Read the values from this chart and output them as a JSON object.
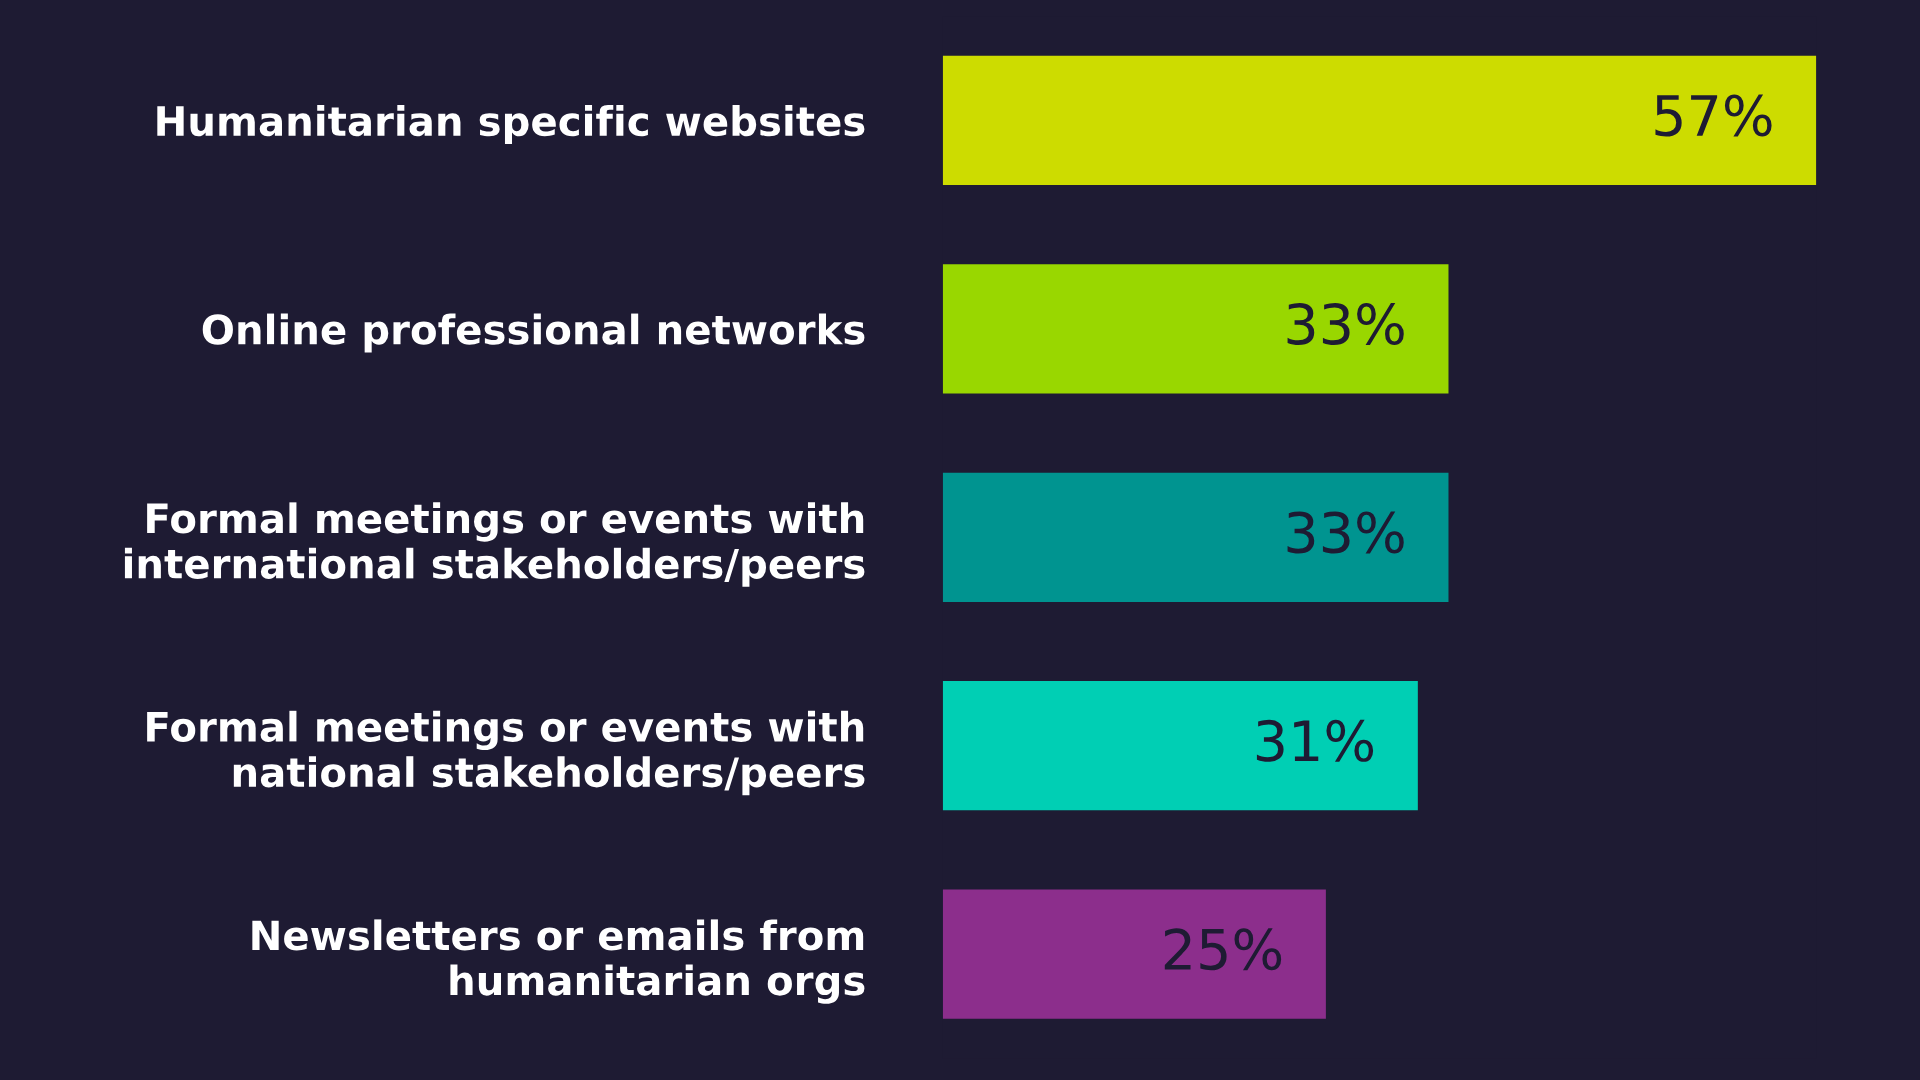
{
  "chart_data": {
    "type": "bar",
    "orientation": "horizontal",
    "categories": [
      "Humanitarian specific websites",
      "Online professional networks",
      "Formal meetings or events with\ninternational stakeholders/peers",
      "Formal meetings or events with\nnational stakeholders/peers",
      "Newsletters or emails from\nhumanitarian orgs"
    ],
    "values": [
      57,
      33,
      33,
      31,
      25
    ],
    "colors": [
      "#cddc00",
      "#99d700",
      "#009490",
      "#00cfb4",
      "#8c2e8c"
    ],
    "value_labels": [
      "57%",
      "33%",
      "33%",
      "31%",
      "25%"
    ],
    "grid": false,
    "legend": false
  }
}
